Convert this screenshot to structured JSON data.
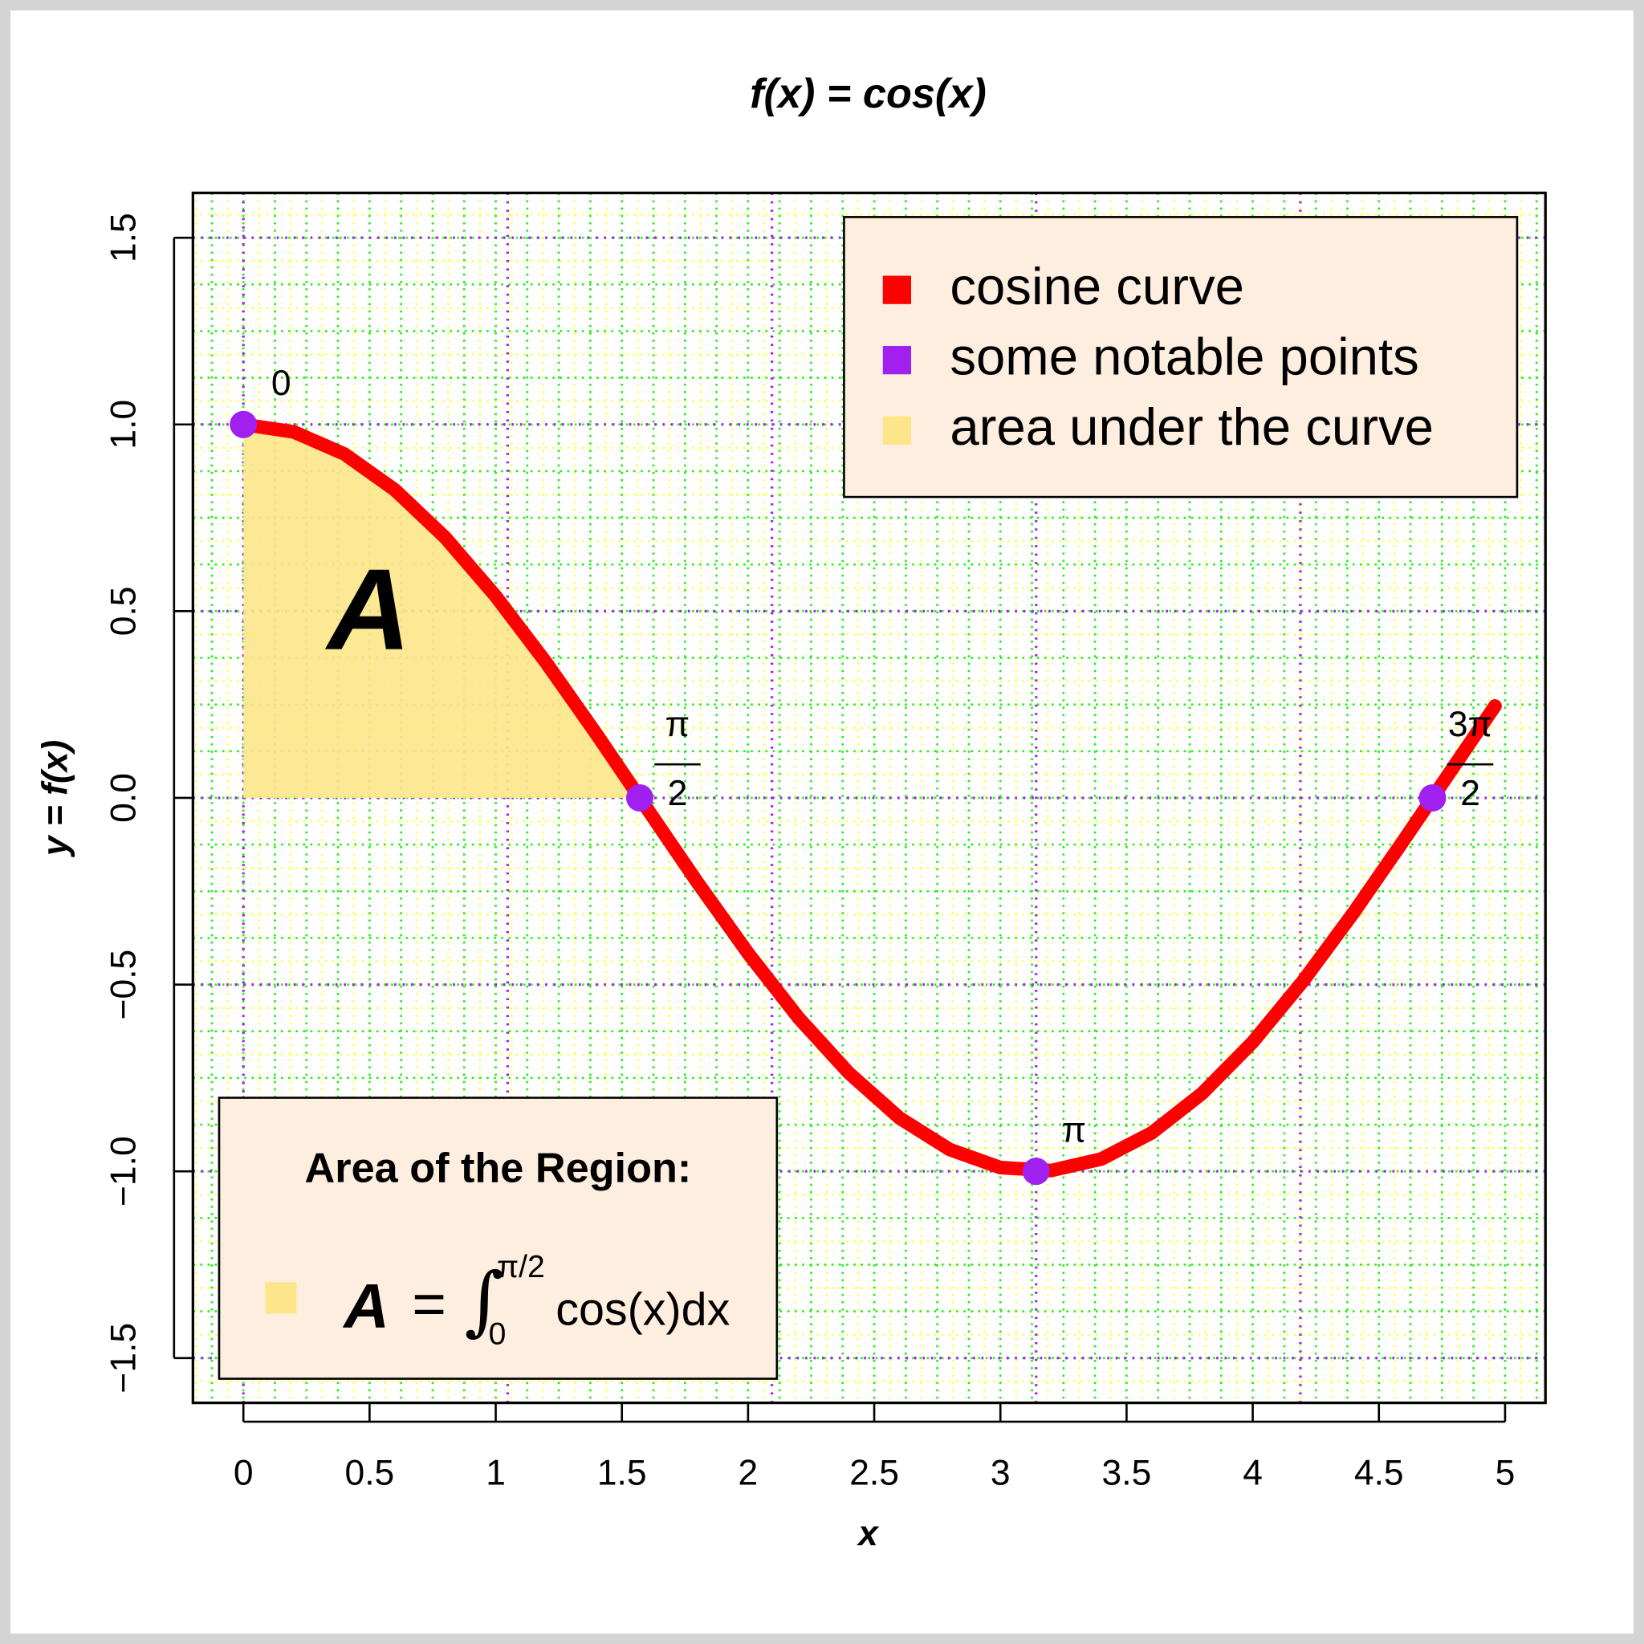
{
  "chart_data": {
    "type": "line",
    "title": "f(x) = cos(x)",
    "x_label": "x",
    "y_label": "y = f(x)",
    "xlim": [
      -0.2,
      5.16
    ],
    "ylim": [
      -1.62,
      1.62
    ],
    "xticks": [
      0,
      0.5,
      1,
      1.5,
      2,
      2.5,
      3,
      3.5,
      4,
      4.5,
      5
    ],
    "yticks": [
      {
        "value": -1.5,
        "label": "−1.5"
      },
      {
        "value": -1,
        "label": "−1.0"
      },
      {
        "value": -0.5,
        "label": "−0.5"
      },
      {
        "value": 0,
        "label": "0.0"
      },
      {
        "value": 0.5,
        "label": "0.5"
      },
      {
        "value": 1,
        "label": "1.0"
      },
      {
        "value": 1.5,
        "label": "1.5"
      }
    ],
    "grid": {
      "major_color": "#a020f0",
      "major_x": [
        0,
        1.0472,
        2.0944,
        3.1416,
        4.1888
      ],
      "minor": [
        {
          "color": "#ffff55",
          "step": 0.0625
        },
        {
          "color": "#22ee22",
          "step": 0.125
        }
      ]
    },
    "legend": "top-right",
    "series": [
      {
        "name": "cosine curve",
        "color": "#ff0000",
        "x": [
          0,
          0.2,
          0.4,
          0.6,
          0.8,
          1.0,
          1.2,
          1.4,
          1.6,
          1.8,
          2.0,
          2.2,
          2.4,
          2.6,
          2.8,
          3.0,
          3.2,
          3.4,
          3.6,
          3.8,
          4.0,
          4.2,
          4.4,
          4.6,
          4.8,
          4.96
        ],
        "values": [
          1,
          0.98,
          0.921,
          0.825,
          0.697,
          0.54,
          0.362,
          0.17,
          -0.029,
          -0.227,
          -0.416,
          -0.589,
          -0.737,
          -0.857,
          -0.942,
          -0.99,
          -0.998,
          -0.967,
          -0.897,
          -0.791,
          -0.654,
          -0.49,
          -0.307,
          -0.112,
          0.087,
          0.246
        ]
      },
      {
        "name": "some notable points",
        "color": "#a020f0",
        "x": [
          0,
          1.5708,
          3.1416,
          4.7124
        ],
        "values": [
          1,
          0,
          -1,
          0
        ],
        "point_labels": [
          {
            "num": "0"
          },
          {
            "num": "π",
            "den": "2"
          },
          {
            "num": "π"
          },
          {
            "num": "3π",
            "den": "2"
          }
        ]
      },
      {
        "name": "area under the curve",
        "color": "#fde68a",
        "x": [
          0,
          0.2,
          0.4,
          0.6,
          0.8,
          1.0,
          1.2,
          1.4,
          1.5708
        ],
        "values": [
          1,
          0.98,
          0.921,
          0.825,
          0.697,
          0.54,
          0.362,
          0.17,
          0
        ]
      }
    ],
    "area_annotation": "A",
    "info_box": {
      "title": "Area of the Region:",
      "lhs": "A",
      "eq": "=",
      "integral": "∫",
      "upper": "π/2",
      "lower": "0",
      "integrand": "cos(x)dx"
    }
  }
}
